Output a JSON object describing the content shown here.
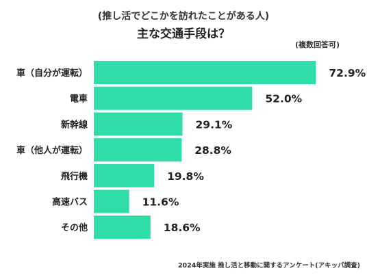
{
  "chart_data": {
    "type": "bar",
    "orientation": "horizontal",
    "subtitle": "(推し活でどこかを訪れたことがある人)",
    "title": "主な交通手段は？",
    "note": "(複数回答可)",
    "source": "2024年実施 推し活と移動に関するアンケート(アキッパ調査)",
    "categories": [
      "車（自分が運転）",
      "電車",
      "新幹線",
      "車（他人が運転）",
      "飛行機",
      "高速バス",
      "その他"
    ],
    "values": [
      72.9,
      52.0,
      29.1,
      28.8,
      19.8,
      11.6,
      18.6
    ],
    "value_labels": [
      "72.9%",
      "52.0%",
      "29.1%",
      "28.8%",
      "19.8%",
      "11.6%",
      "18.6%"
    ],
    "unit": "%",
    "xlim": [
      0,
      100
    ],
    "grid": false,
    "legend": "none",
    "bar_color": "#2fdcaa"
  }
}
